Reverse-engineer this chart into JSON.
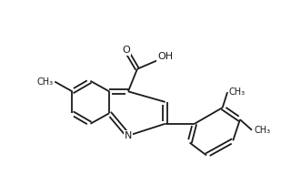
{
  "background_color": "#ffffff",
  "line_color": "#1a1a1a",
  "line_width": 1.3,
  "font_size": 7.5,
  "fig_width": 3.2,
  "fig_height": 2.14,
  "dpi": 100,
  "xlim": [
    0,
    10
  ],
  "ylim": [
    0,
    6.7
  ]
}
